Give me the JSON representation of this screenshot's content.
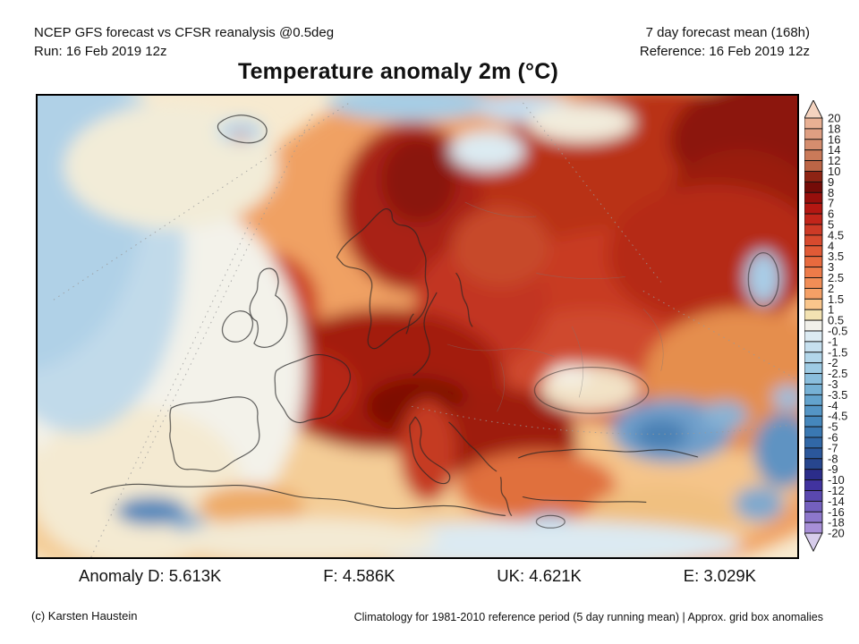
{
  "header": {
    "left": [
      "NCEP GFS forecast vs CFSR reanalysis @0.5deg",
      "Run: 16 Feb 2019 12z"
    ],
    "right": [
      "7 day forecast mean (168h)",
      "Reference: 16 Feb 2019 12z"
    ]
  },
  "title": "Temperature anomaly 2m (°C)",
  "colorbar": {
    "labels": [
      "20",
      "18",
      "16",
      "14",
      "12",
      "10",
      "9",
      "8",
      "7",
      "6",
      "5",
      "4.5",
      "4",
      "3.5",
      "3",
      "2.5",
      "2",
      "1.5",
      "1",
      "0.5",
      "-0.5",
      "-1",
      "-1.5",
      "-2",
      "-2.5",
      "-3",
      "-3.5",
      "-4",
      "-4.5",
      "-5",
      "-6",
      "-7",
      "-8",
      "-9",
      "-10",
      "-12",
      "-14",
      "-16",
      "-18",
      "-20"
    ],
    "colors": [
      "#f4d3bf",
      "#e9b093",
      "#df9f82",
      "#d58d6e",
      "#ca7a59",
      "#bc6546",
      "#8e2414",
      "#740c08",
      "#970f0c",
      "#b41712",
      "#c2251a",
      "#cd3a26",
      "#d74a2e",
      "#e05a36",
      "#e76a3e",
      "#ed7b49",
      "#f18d56",
      "#f5a066",
      "#fac68c",
      "#f3e2b2",
      "#f1f0ea",
      "#dcebf3",
      "#c6e0ef",
      "#b2d6ea",
      "#9ecbe4",
      "#8abedd",
      "#76b1d5",
      "#63a3cd",
      "#5495c5",
      "#4587bc",
      "#3a78b2",
      "#3168a7",
      "#2b579b",
      "#27468e",
      "#2b2d8a",
      "#41339f",
      "#5a48af",
      "#7460be",
      "#8d77cb",
      "#a78fd7",
      "#d7cdeb"
    ]
  },
  "stats": {
    "items": [
      {
        "text": "Anomaly D: 5.613K"
      },
      {
        "text": "F: 4.586K"
      },
      {
        "text": "UK: 4.621K"
      },
      {
        "text": "E: 3.029K"
      }
    ]
  },
  "footer": {
    "left": "(c) Karsten Haustein",
    "right": "Climatology for 1981-2010 reference period (5 day running mean) | Approx. grid box anomalies"
  },
  "chart_data": {
    "type": "heatmap",
    "title": "Temperature anomaly 2m (°C)",
    "subtitle_left": "NCEP GFS forecast vs CFSR reanalysis @0.5deg, Run: 16 Feb 2019 12z",
    "subtitle_right": "7 day forecast mean (168h), Reference: 16 Feb 2019 12z",
    "colorbar_levels": [
      20,
      18,
      16,
      14,
      12,
      10,
      9,
      8,
      7,
      6,
      5,
      4.5,
      4,
      3.5,
      3,
      2.5,
      2,
      1.5,
      1,
      0.5,
      -0.5,
      -1,
      -1.5,
      -2,
      -2.5,
      -3,
      -3.5,
      -4,
      -4.5,
      -5,
      -6,
      -7,
      -8,
      -9,
      -10,
      -12,
      -14,
      -16,
      -18,
      -20
    ],
    "units": "°C anomaly",
    "legend_position": "right",
    "region_mean_anomalies_K": {
      "D": 5.613,
      "F": 4.586,
      "UK": 4.621,
      "E": 3.029
    },
    "map_extent": "Europe / North Atlantic / North Africa / Western Russia",
    "notable_features": [
      "strong warm anomaly (+6 to +10) over central/eastern Europe, Scandinavia and NW Russia",
      "cool anomaly (-1 to -3) NW Atlantic corner and near Iceland",
      "cool anomaly (-3 to -6) over eastern Turkey / Caucasus",
      "near-neutral central Atlantic and western Mediterranean"
    ]
  }
}
